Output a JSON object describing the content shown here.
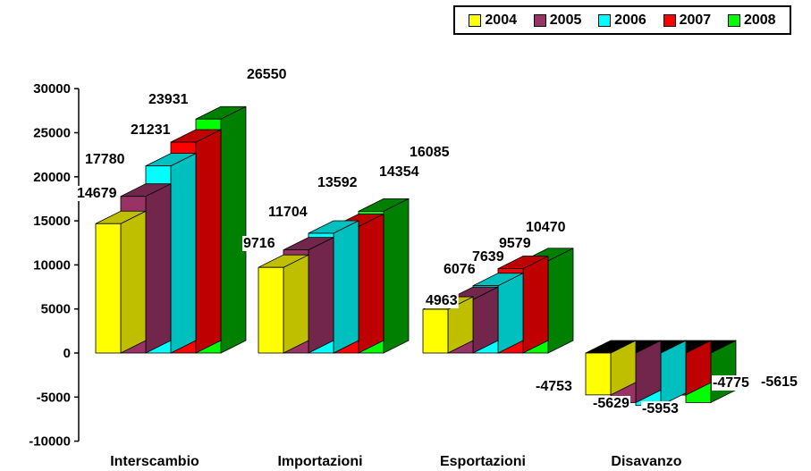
{
  "chart_data": {
    "type": "bar",
    "categories": [
      "Interscambio",
      "Importazioni",
      "Esportazioni",
      "Disavanzo"
    ],
    "series": [
      {
        "name": "2004",
        "color": "#ffff00",
        "side_color": "#bfbf00",
        "values": [
          14679,
          9716,
          4963,
          -4753
        ]
      },
      {
        "name": "2005",
        "color": "#993366",
        "side_color": "#73264c",
        "values": [
          17780,
          11704,
          6076,
          -5629
        ]
      },
      {
        "name": "2006",
        "color": "#00ffff",
        "side_color": "#00bfbf",
        "values": [
          21231,
          13592,
          7639,
          -5953
        ]
      },
      {
        "name": "2007",
        "color": "#ff0000",
        "side_color": "#bf0000",
        "values": [
          23931,
          14354,
          9579,
          -4775
        ]
      },
      {
        "name": "2008",
        "color": "#00ff00",
        "side_color": "#008000",
        "values": [
          26550,
          16085,
          10470,
          -5615
        ]
      }
    ],
    "yticks": [
      "30000",
      "25000",
      "20000",
      "15000",
      "10000",
      "5000",
      "0",
      "-5000",
      "-10000"
    ],
    "ylim": [
      -10000,
      30000
    ],
    "legend_position": "top-right",
    "grid": false
  }
}
